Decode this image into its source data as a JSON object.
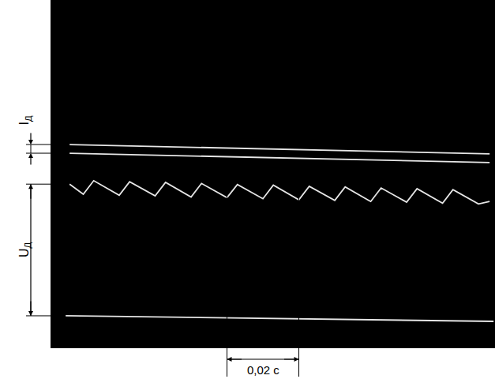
{
  "chart_data": {
    "type": "line",
    "xlim": [
      0,
      0.1235
    ],
    "ylim": [
      0,
      10
    ],
    "xticks": [],
    "yticks": [],
    "tick_labels": false,
    "grid": false,
    "series": [
      {
        "color": "#e6e6e6",
        "x": [
          0.0051,
          0.122
        ],
        "values": [
          5.84,
          5.57
        ]
      },
      {
        "color": "#e6e6e6",
        "x": [
          0.0051,
          0.122
        ],
        "values": [
          5.59,
          5.32
        ]
      },
      {
        "color": "#e6e6e6",
        "x": [
          0.0051,
          0.0089,
          0.0118,
          0.0189,
          0.0218,
          0.0289,
          0.0318,
          0.0389,
          0.0418,
          0.0489,
          0.0518,
          0.0589,
          0.0618,
          0.0689,
          0.0718,
          0.0789,
          0.0818,
          0.0889,
          0.0918,
          0.0989,
          0.1018,
          0.1089,
          0.1118,
          0.1189,
          0.122
        ],
        "values": [
          4.7,
          4.41,
          4.8,
          4.38,
          4.77,
          4.36,
          4.75,
          4.33,
          4.72,
          4.31,
          4.69,
          4.28,
          4.67,
          4.25,
          4.64,
          4.23,
          4.62,
          4.2,
          4.59,
          4.18,
          4.57,
          4.15,
          4.54,
          4.13,
          4.2
        ]
      },
      {
        "color": "#e6e6e6",
        "x": [
          0.004,
          0.1231
        ],
        "values": [
          0.91,
          0.75
        ]
      }
    ],
    "annotations": [
      {
        "text": "I",
        "subscript": "Д",
        "y": [
          5.59,
          5.84
        ]
      },
      {
        "text": "U",
        "subscript": "Д",
        "y": [
          0.91,
          4.7
        ]
      },
      {
        "text": "0,02 с",
        "x": [
          0.0489,
          0.0689
        ]
      }
    ]
  }
}
